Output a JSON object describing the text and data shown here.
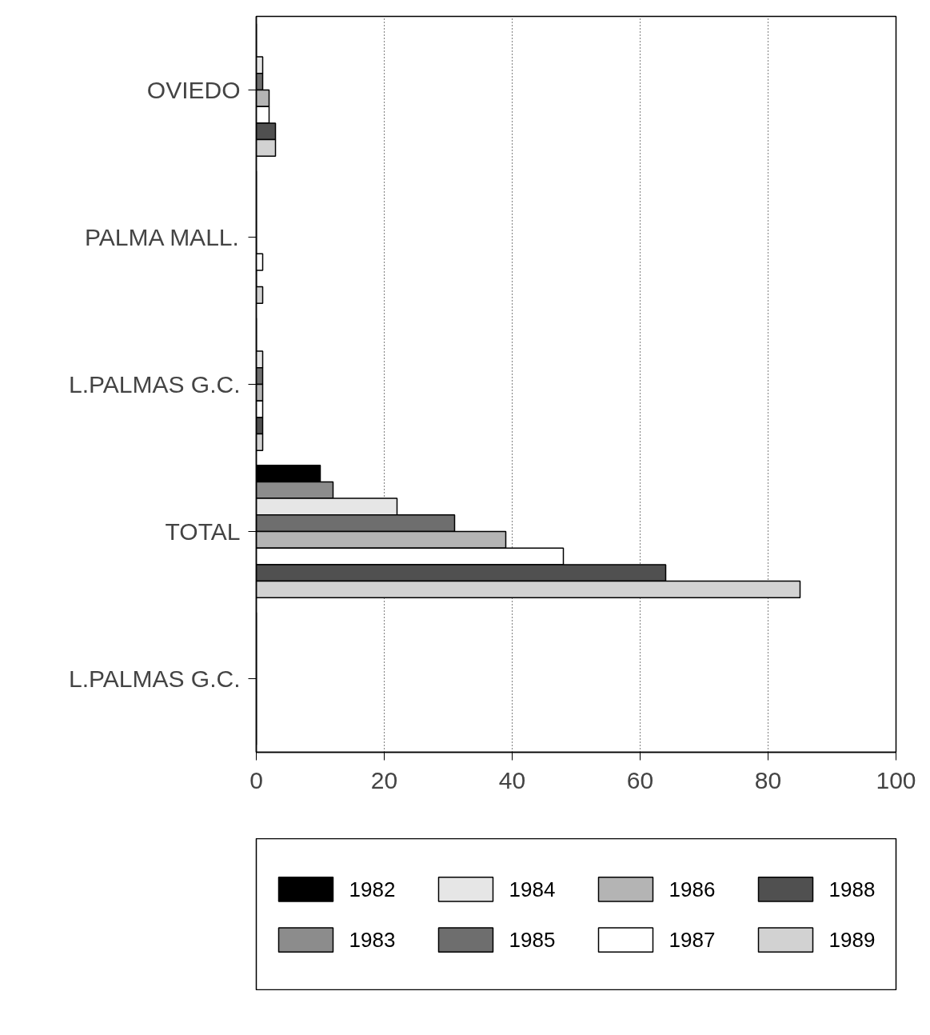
{
  "chart_data": {
    "type": "bar",
    "orientation": "horizontal",
    "categories": [
      "OVIEDO",
      "PALMA MALL.",
      "L.PALMAS G.C.",
      "TOTAL",
      "L.PALMAS G.C."
    ],
    "series": [
      {
        "name": "1982",
        "color": "#000000",
        "values": [
          0,
          0,
          0,
          10,
          0
        ]
      },
      {
        "name": "1983",
        "color": "#8c8c8c",
        "values": [
          0,
          0,
          0,
          12,
          0
        ]
      },
      {
        "name": "1984",
        "color": "#e6e6e6",
        "values": [
          1,
          0,
          1,
          22,
          0
        ]
      },
      {
        "name": "1985",
        "color": "#6e6e6e",
        "values": [
          1,
          0,
          1,
          31,
          0
        ]
      },
      {
        "name": "1986",
        "color": "#b4b4b4",
        "values": [
          2,
          0,
          1,
          39,
          0
        ]
      },
      {
        "name": "1987",
        "color": "#ffffff",
        "values": [
          2,
          1,
          1,
          48,
          0
        ]
      },
      {
        "name": "1988",
        "color": "#505050",
        "values": [
          3,
          0,
          1,
          64,
          0
        ]
      },
      {
        "name": "1989",
        "color": "#d2d2d2",
        "values": [
          3,
          1,
          1,
          85,
          0
        ]
      }
    ],
    "xlim": [
      0,
      100
    ],
    "xticks": [
      0,
      20,
      40,
      60,
      80,
      100
    ],
    "grid": "x",
    "legend": "bottom"
  }
}
